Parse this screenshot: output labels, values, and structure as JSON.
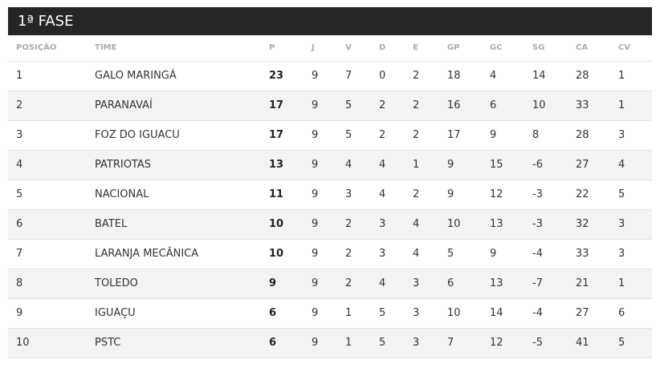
{
  "header": {
    "title": "1ª FASE"
  },
  "table": {
    "columns": [
      "POSIÇÃO",
      "TIME",
      "P",
      "J",
      "V",
      "D",
      "E",
      "GP",
      "GC",
      "SG",
      "CA",
      "CV"
    ],
    "rows": [
      [
        1,
        "GALO MARINGÁ",
        23,
        9,
        7,
        0,
        2,
        18,
        4,
        14,
        28,
        1
      ],
      [
        2,
        "PARANAVAÍ",
        17,
        9,
        5,
        2,
        2,
        16,
        6,
        10,
        33,
        1
      ],
      [
        3,
        "FOZ DO IGUACU",
        17,
        9,
        5,
        2,
        2,
        17,
        9,
        8,
        28,
        3
      ],
      [
        4,
        "PATRIOTAS",
        13,
        9,
        4,
        4,
        1,
        9,
        15,
        -6,
        27,
        4
      ],
      [
        5,
        "NACIONAL",
        11,
        9,
        3,
        4,
        2,
        9,
        12,
        -3,
        22,
        5
      ],
      [
        6,
        "BATEL",
        10,
        9,
        2,
        3,
        4,
        10,
        13,
        -3,
        32,
        3
      ],
      [
        7,
        "LARANJA MECÂNICA",
        10,
        9,
        2,
        3,
        4,
        5,
        9,
        -4,
        33,
        3
      ],
      [
        8,
        "TOLEDO",
        9,
        9,
        2,
        4,
        3,
        6,
        13,
        -7,
        21,
        1
      ],
      [
        9,
        "IGUAÇU",
        6,
        9,
        1,
        5,
        3,
        10,
        14,
        -4,
        27,
        6
      ],
      [
        10,
        "PSTC",
        6,
        9,
        1,
        5,
        3,
        7,
        12,
        -5,
        41,
        5
      ]
    ]
  }
}
